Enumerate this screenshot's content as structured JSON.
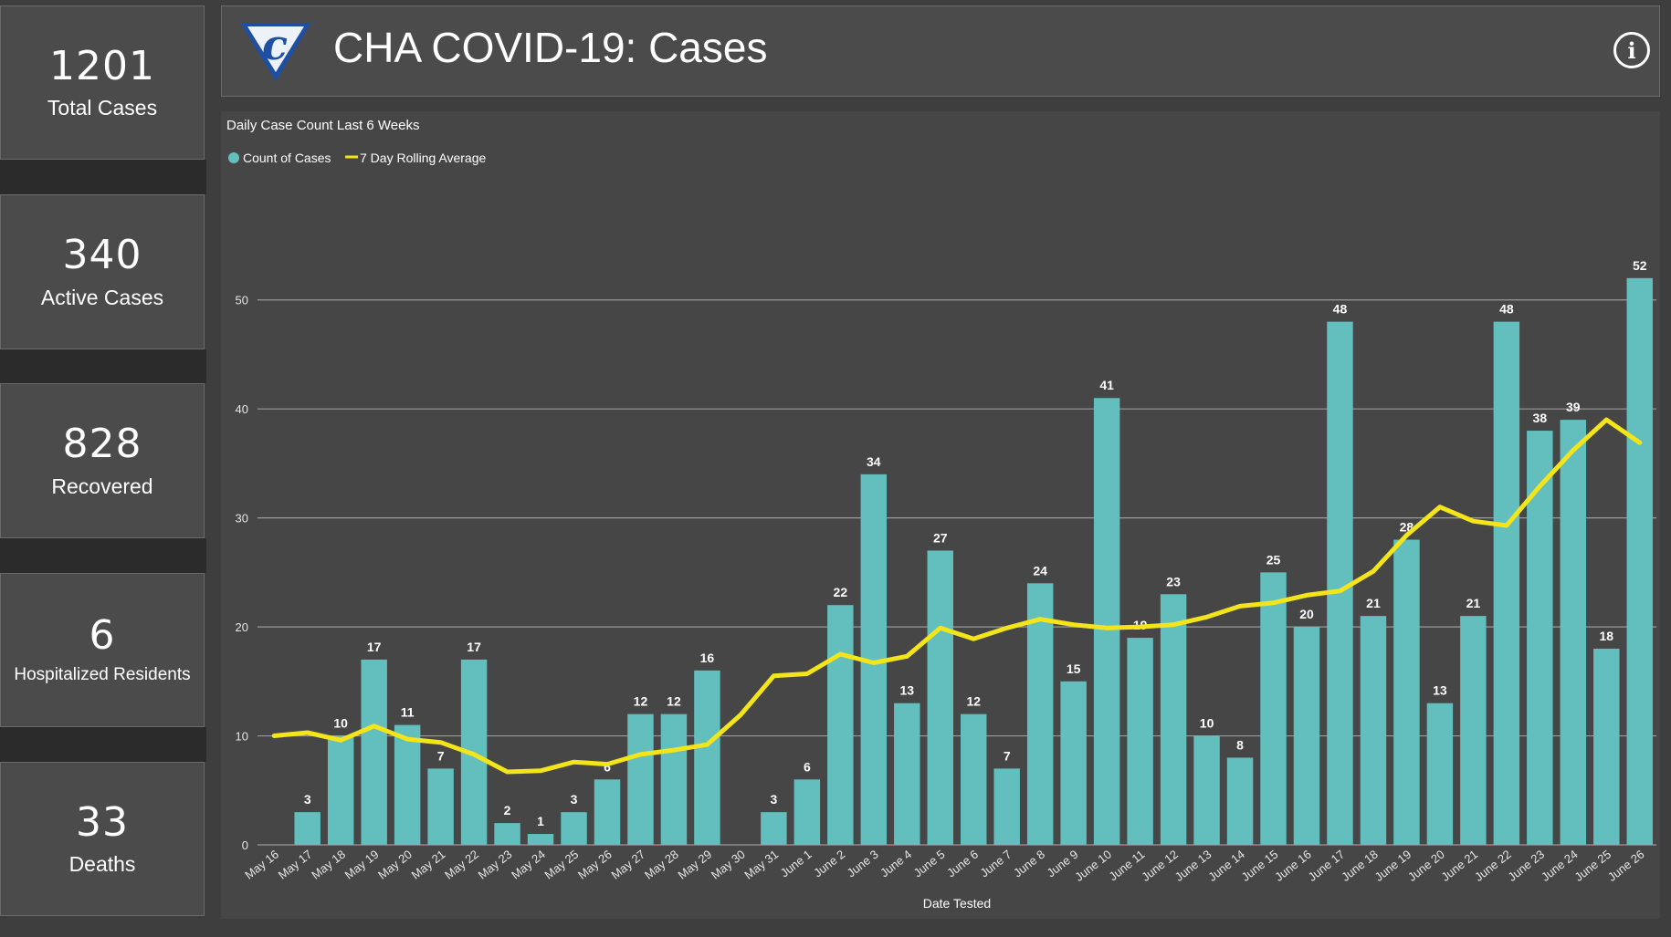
{
  "colors": {
    "bar": "#62bfbe",
    "line": "#f4e51a",
    "grid": "#9a9a9a",
    "accent_logo": "#1f4fa0"
  },
  "kpis": [
    {
      "value": "1201",
      "label": "Total Cases"
    },
    {
      "value": "340",
      "label": "Active Cases"
    },
    {
      "value": "828",
      "label": "Recovered"
    },
    {
      "value": "6",
      "label": "Hospitalized Residents"
    },
    {
      "value": "33",
      "label": "Deaths"
    }
  ],
  "header": {
    "title": "CHA COVID-19: Cases",
    "info_glyph": "i",
    "logo_letter": "c"
  },
  "chart_data": {
    "type": "bar",
    "title": "Daily Case Count Last 6 Weeks",
    "xlabel": "Date Tested",
    "ylabel": "",
    "ylim": [
      0,
      55
    ],
    "yticks": [
      0,
      10,
      20,
      30,
      40,
      50
    ],
    "legend": [
      "Count of Cases",
      "7 Day Rolling Average"
    ],
    "legend_position": "top-left",
    "categories": [
      "May 16",
      "May 17",
      "May 18",
      "May 19",
      "May 20",
      "May 21",
      "May 22",
      "May 23",
      "May 24",
      "May 25",
      "May 26",
      "May 27",
      "May 28",
      "May 29",
      "May 30",
      "May 31",
      "June 1",
      "June 2",
      "June 3",
      "June 4",
      "June 5",
      "June 6",
      "June 7",
      "June 8",
      "June 9",
      "June 10",
      "June 11",
      "June 12",
      "June 13",
      "June 14",
      "June 15",
      "June 16",
      "June 17",
      "June 18",
      "June 19",
      "June 20",
      "June 21",
      "June 22",
      "June 23",
      "June 24",
      "June 25",
      "June 26"
    ],
    "series": [
      {
        "name": "Count of Cases",
        "type": "bar",
        "values": [
          null,
          3,
          10,
          17,
          11,
          7,
          17,
          2,
          1,
          3,
          6,
          12,
          12,
          16,
          null,
          3,
          6,
          22,
          34,
          13,
          27,
          12,
          7,
          24,
          15,
          41,
          19,
          23,
          10,
          8,
          25,
          20,
          48,
          21,
          28,
          13,
          21,
          48,
          38,
          39,
          18,
          52
        ]
      },
      {
        "name": "7 Day Rolling Average",
        "type": "line",
        "values": [
          10,
          10.3,
          9.6,
          10.9,
          9.7,
          9.4,
          8.3,
          6.7,
          6.8,
          7.6,
          7.4,
          8.3,
          8.7,
          9.2,
          11.9,
          15.5,
          15.7,
          17.5,
          16.7,
          17.3,
          19.9,
          18.9,
          19.9,
          20.7,
          20.2,
          19.9,
          20.0,
          20.2,
          20.9,
          21.9,
          22.2,
          22.9,
          23.3,
          25.1,
          28.4,
          31.0,
          29.7,
          29.3,
          32.9,
          36.2,
          39.0,
          36.9
        ]
      }
    ]
  }
}
